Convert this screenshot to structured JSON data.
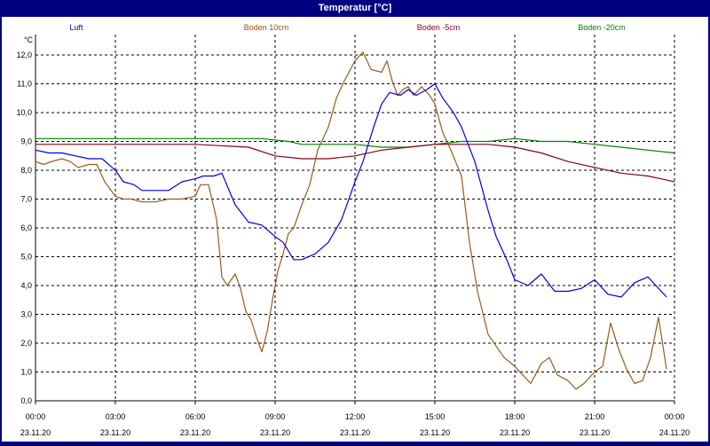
{
  "window": {
    "title": "Temperatur [°C]"
  },
  "chart_data": {
    "type": "line",
    "title": "Temperatur [°C]",
    "ylabel": "°C",
    "ylim": [
      0,
      12
    ],
    "y_ticks": [
      "0,0",
      "1,0",
      "2,0",
      "3,0",
      "4,0",
      "5,0",
      "6,0",
      "7,0",
      "8,0",
      "9,0",
      "10,0",
      "11,0",
      "12,0"
    ],
    "xlim": [
      0,
      24
    ],
    "x_ticks": [
      {
        "h": 0,
        "time": "00:00",
        "date": "23.11.20"
      },
      {
        "h": 3,
        "time": "03:00",
        "date": "23.11.20"
      },
      {
        "h": 6,
        "time": "06:00",
        "date": "23.11.20"
      },
      {
        "h": 9,
        "time": "09:00",
        "date": "23.11.20"
      },
      {
        "h": 12,
        "time": "12:00",
        "date": "23.11.20"
      },
      {
        "h": 15,
        "time": "15:00",
        "date": "23.11.20"
      },
      {
        "h": 18,
        "time": "18:00",
        "date": "23.11.20"
      },
      {
        "h": 21,
        "time": "21:00",
        "date": "23.11.20"
      },
      {
        "h": 24,
        "time": "00:00",
        "date": "24.11.20"
      }
    ],
    "grid": true,
    "series": [
      {
        "name": "Luft",
        "color": "#0000e0",
        "legend_color": "#0000c0",
        "x": [
          0,
          0.5,
          1,
          1.5,
          2,
          2.5,
          3,
          3.3,
          3.7,
          4,
          4.5,
          5,
          5.5,
          6,
          6.3,
          6.7,
          7,
          7.5,
          8,
          8.5,
          9,
          9.3,
          9.7,
          10,
          10.5,
          11,
          11.5,
          12,
          12.3,
          12.7,
          13,
          13.3,
          13.7,
          14,
          14.3,
          14.7,
          15,
          15.3,
          15.7,
          16,
          16.5,
          17,
          17.3,
          17.7,
          18,
          18.5,
          19,
          19.5,
          20,
          20.5,
          21,
          21.5,
          22,
          22.5,
          23,
          23.3,
          23.7
        ],
        "y": [
          8.7,
          8.6,
          8.6,
          8.5,
          8.4,
          8.4,
          8,
          7.6,
          7.5,
          7.3,
          7.3,
          7.3,
          7.6,
          7.7,
          7.8,
          7.8,
          7.9,
          6.8,
          6.2,
          6.1,
          5.7,
          5.5,
          4.9,
          4.9,
          5.1,
          5.5,
          6.3,
          7.6,
          8.3,
          9.5,
          10.3,
          10.7,
          10.6,
          10.8,
          10.6,
          10.8,
          11,
          10.5,
          10,
          9.5,
          8.3,
          6.6,
          5.7,
          4.9,
          4.2,
          4,
          4.4,
          3.8,
          3.8,
          3.9,
          4.2,
          3.7,
          3.6,
          4.1,
          4.3,
          4,
          3.6
        ]
      },
      {
        "name": "Boden 10cm",
        "color": "#9a5a1a",
        "legend_color": "#a05000",
        "x": [
          0,
          0.3,
          0.6,
          1,
          1.3,
          1.6,
          2,
          2.3,
          2.6,
          3,
          3.3,
          3.6,
          4,
          4.5,
          5,
          5.5,
          6,
          6.2,
          6.5,
          6.8,
          7,
          7.2,
          7.5,
          7.7,
          7.9,
          8.1,
          8.3,
          8.5,
          8.7,
          8.9,
          9.1,
          9.3,
          9.5,
          9.7,
          10,
          10.3,
          10.6,
          11,
          11.3,
          11.6,
          12,
          12.3,
          12.6,
          13,
          13.2,
          13.4,
          13.6,
          13.8,
          14,
          14.2,
          14.5,
          14.8,
          15,
          15.3,
          15.6,
          16,
          16.3,
          16.6,
          17,
          17.3,
          17.6,
          18,
          18.3,
          18.6,
          19,
          19.3,
          19.6,
          20,
          20.3,
          20.6,
          21,
          21.3,
          21.6,
          21.9,
          22.2,
          22.5,
          22.8,
          23.1,
          23.4,
          23.7
        ],
        "y": [
          8.3,
          8.2,
          8.3,
          8.4,
          8.3,
          8.1,
          8.2,
          8.2,
          7.6,
          7.1,
          7,
          7,
          6.9,
          6.9,
          7,
          7,
          7.1,
          7.5,
          7.5,
          6.3,
          4.3,
          4,
          4.4,
          3.9,
          3.1,
          2.8,
          2.2,
          1.7,
          2.4,
          3.5,
          4.5,
          5.1,
          5.8,
          6,
          6.8,
          7.5,
          8.7,
          9.5,
          10.5,
          11.1,
          11.8,
          12.1,
          11.5,
          11.4,
          11.8,
          11.1,
          10.6,
          10.8,
          10.9,
          10.6,
          10.9,
          10.6,
          10.3,
          9.3,
          8.7,
          7.8,
          5.5,
          3.8,
          2.3,
          1.9,
          1.5,
          1.2,
          0.9,
          0.6,
          1.3,
          1.5,
          0.9,
          0.7,
          0.4,
          0.6,
          1,
          1.2,
          2.7,
          1.8,
          1.1,
          0.6,
          0.7,
          1.5,
          2.9,
          1.1
        ]
      },
      {
        "name": "Boden -5cm",
        "color": "#8a0010",
        "legend_color": "#900020",
        "x": [
          0,
          2,
          4,
          6,
          8,
          9,
          10,
          11,
          12,
          13,
          14,
          15,
          16,
          17,
          18,
          19,
          20,
          21,
          22,
          23,
          23.5,
          24
        ],
        "y": [
          8.9,
          8.9,
          8.9,
          8.9,
          8.8,
          8.5,
          8.4,
          8.4,
          8.5,
          8.7,
          8.8,
          8.9,
          8.9,
          8.9,
          8.8,
          8.6,
          8.3,
          8.1,
          7.9,
          7.8,
          7.7,
          7.6
        ]
      },
      {
        "name": "Boden -20cm",
        "color": "#008000",
        "legend_color": "#008000",
        "x": [
          0,
          3,
          6,
          8.5,
          9.5,
          10,
          11,
          12,
          13,
          14,
          15,
          16,
          17,
          18,
          19,
          20,
          21,
          22,
          23,
          24
        ],
        "y": [
          9.1,
          9.1,
          9.1,
          9.1,
          9,
          8.9,
          8.9,
          8.9,
          8.8,
          8.8,
          8.9,
          9,
          9,
          9.1,
          9,
          9,
          8.9,
          8.8,
          8.7,
          8.6
        ]
      }
    ]
  }
}
